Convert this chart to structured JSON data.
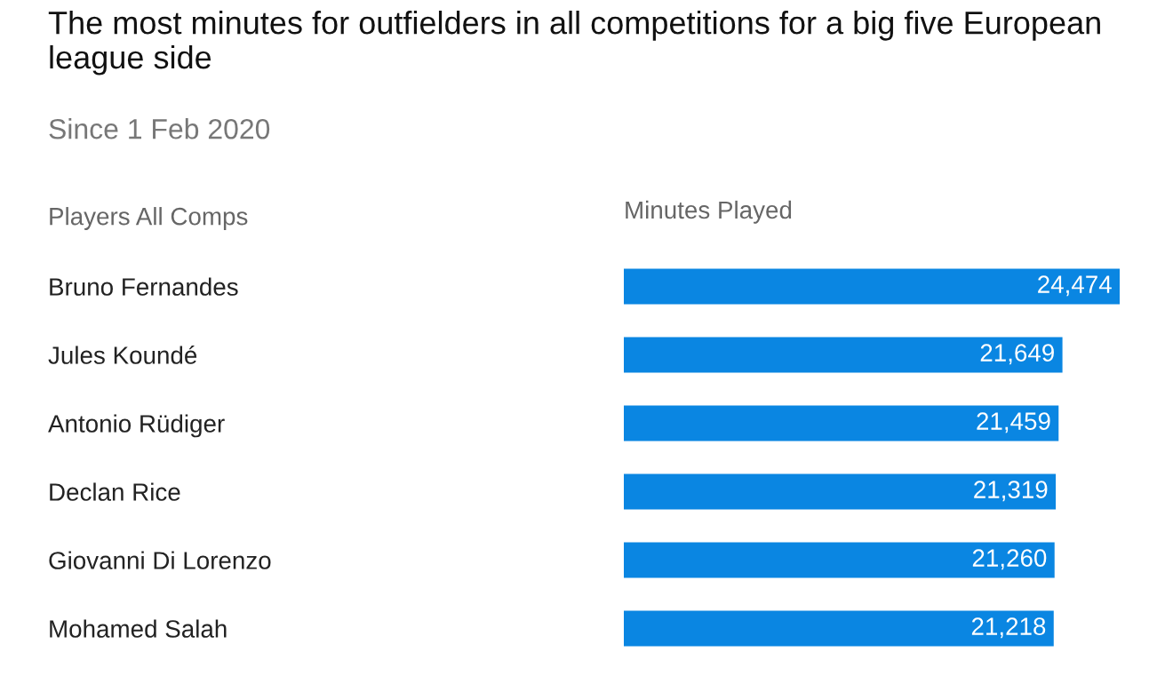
{
  "chart_data": {
    "type": "bar",
    "orientation": "horizontal",
    "title": "The most minutes for outfielders in all competitions for a big five European league side",
    "subtitle": "Since 1 Feb 2020",
    "ylabel": "Players All Comps",
    "xlabel": "Minutes Played",
    "categories": [
      "Bruno Fernandes",
      "Jules Koundé",
      "Antonio Rüdiger",
      "Declan Rice",
      "Giovanni Di Lorenzo",
      "Mohamed Salah"
    ],
    "values": [
      24474,
      21649,
      21459,
      21319,
      21260,
      21218
    ],
    "value_labels": [
      "24,474",
      "21,649",
      "21,459",
      "21,319",
      "21,260",
      "21,218"
    ],
    "color": "#0a86e2",
    "xlim": [
      0,
      24474
    ],
    "tick_labels": "y",
    "grid": false,
    "legend": false
  }
}
